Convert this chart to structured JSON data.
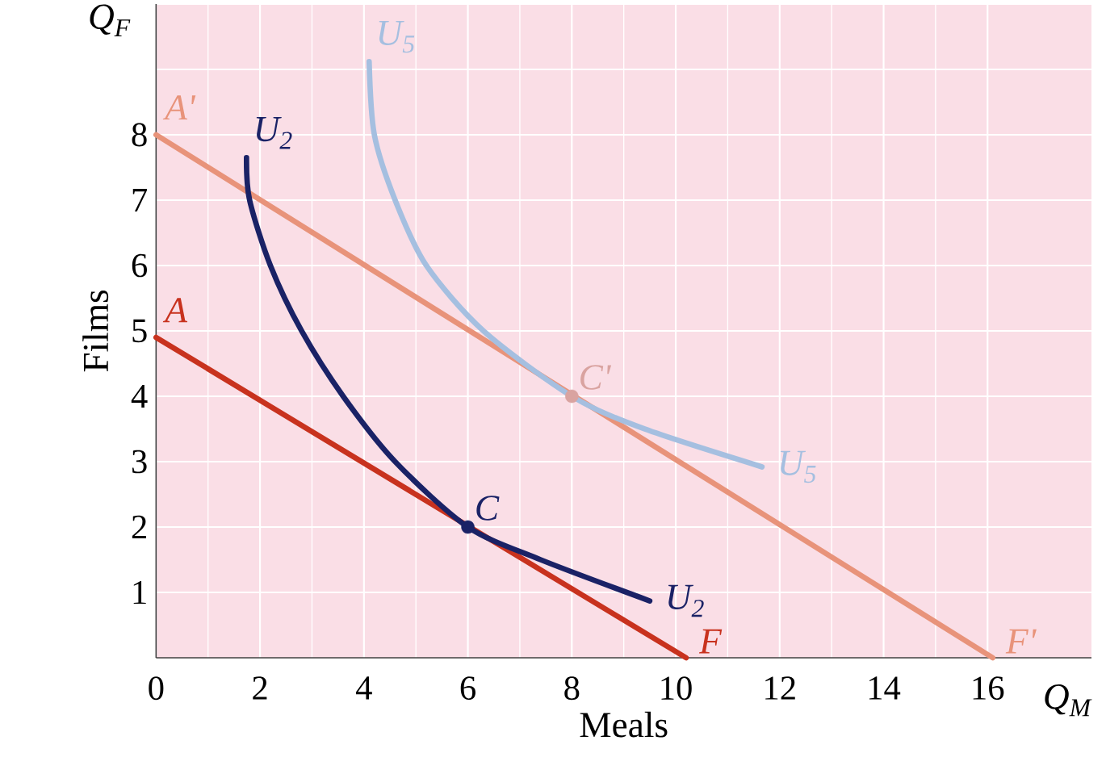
{
  "chart_data": {
    "type": "line",
    "xlabel": "Meals",
    "ylabel": "Films",
    "xlim": [
      0,
      18
    ],
    "ylim": [
      0,
      10
    ],
    "xticks": [
      0,
      2,
      4,
      6,
      8,
      10,
      12,
      14,
      16
    ],
    "yticks": [
      1,
      2,
      3,
      4,
      5,
      6,
      7,
      8,
      {
        "value": 9,
        "label": null
      },
      {
        "value": 10,
        "label": null
      }
    ],
    "grid": true,
    "series": [
      {
        "color": "#c8321e",
        "x": [
          0,
          10.2
        ],
        "values": [
          4.9,
          0
        ]
      },
      {
        "color": "#e8937a",
        "x": [
          0,
          16.1
        ],
        "values": [
          8,
          0
        ]
      },
      {
        "color": "#1a2266",
        "x": [
          1.74,
          1.8,
          2.2,
          2.8,
          3.6,
          4.6,
          6.0,
          7.4,
          9.5
        ],
        "values": [
          7.65,
          7,
          6,
          5,
          4,
          3,
          2,
          1.5,
          0.87
        ]
      },
      {
        "color": "#a5bfe0",
        "x": [
          4.1,
          4.2,
          4.6,
          5.2,
          6.3,
          8.0,
          9.4,
          11.66
        ],
        "values": [
          9.12,
          8,
          7,
          6,
          5,
          4,
          3.5,
          2.92
        ]
      },
      {
        "type": "scatter",
        "marker": "circle",
        "x": [
          6,
          8
        ],
        "values": [
          2,
          4
        ],
        "colors": [
          "#1a2266",
          "#d9a3a0"
        ]
      }
    ],
    "annotations": [
      "Q$_{F}$",
      "Q$_{M}$",
      {
        "text": "A",
        "x": 0,
        "y": 4.9
      },
      {
        "text": "F",
        "x": 10.2,
        "y": 0
      },
      {
        "text": "A'",
        "x": 0,
        "y": 8
      },
      {
        "text": "F'",
        "x": 16.1,
        "y": 0
      },
      {
        "text": "U$_{2}$",
        "x": 1.74,
        "y": 7.65
      },
      {
        "text": "U$_{2}$",
        "x": 9.5,
        "y": 0.87
      },
      {
        "text": "U$_{5}$",
        "x": 4.1,
        "y": 9.12
      },
      {
        "text": "U$_{5}$",
        "x": 11.66,
        "y": 2.92
      },
      {
        "text": "C",
        "x": 6,
        "y": 2
      },
      {
        "text": "C'",
        "x": 8,
        "y": 4
      }
    ]
  }
}
